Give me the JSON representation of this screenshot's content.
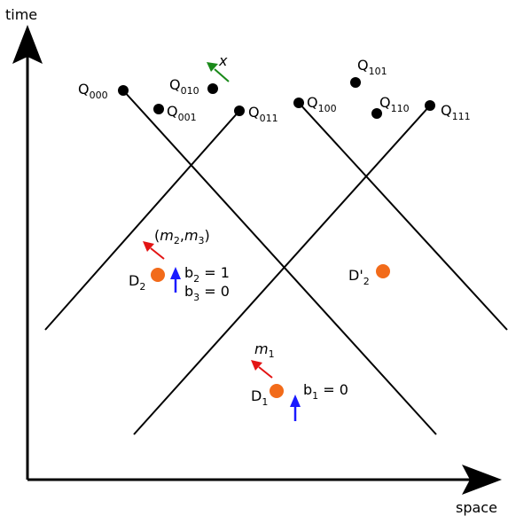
{
  "axes": {
    "x_label": "space",
    "y_label": "time"
  },
  "colors": {
    "line": "#000000",
    "detector": "#f26b1a",
    "arrow_red": "#e31414",
    "arrow_blue": "#1a1aff",
    "arrow_green": "#1a8a1a"
  },
  "points": {
    "q000": {
      "base": "Q",
      "sub": "000"
    },
    "q001": {
      "base": "Q",
      "sub": "001"
    },
    "q010": {
      "base": "Q",
      "sub": "010"
    },
    "q011": {
      "base": "Q",
      "sub": "011"
    },
    "q100": {
      "base": "Q",
      "sub": "100"
    },
    "q101": {
      "base": "Q",
      "sub": "101"
    },
    "q110": {
      "base": "Q",
      "sub": "110"
    },
    "q111": {
      "base": "Q",
      "sub": "111"
    }
  },
  "annotations": {
    "x": "x",
    "m23_open": "(",
    "m23_m": "m",
    "m23_sub1": "2",
    "m23_comma": ",",
    "m23_sub2": "3",
    "m23_close": ")",
    "m1_base": "m",
    "m1_sub": "1"
  },
  "detectors": {
    "d1": {
      "base": "D",
      "sub": "1"
    },
    "d2": {
      "base": "D",
      "sub": "2"
    },
    "d2p": {
      "base": "D'",
      "sub": "2"
    }
  },
  "bits": {
    "b1": {
      "base": "b",
      "sub": "1",
      "rest": " = 0"
    },
    "b2": {
      "base": "b",
      "sub": "2",
      "rest": " = 1"
    },
    "b3": {
      "base": "b",
      "sub": "3",
      "rest": " = 0"
    }
  }
}
